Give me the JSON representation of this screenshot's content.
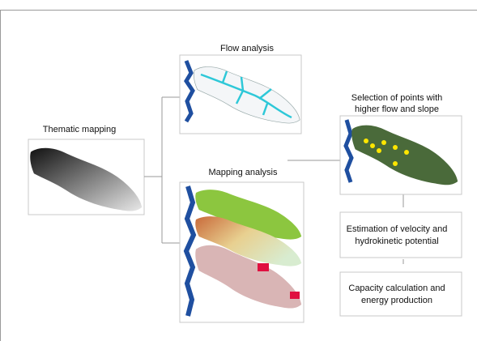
{
  "nodes": [
    {
      "label": "Thematic mapping"
    },
    {
      "label": "Flow analysis"
    },
    {
      "label": "Mapping analysis"
    },
    {
      "label_lines": [
        "Selection of points with",
        "higher flow and slope"
      ]
    },
    {
      "label_lines": [
        "Estimation of velocity and",
        "hydrokinetic potential"
      ]
    },
    {
      "label_lines": [
        "Capacity calculation and",
        "energy production"
      ]
    }
  ]
}
